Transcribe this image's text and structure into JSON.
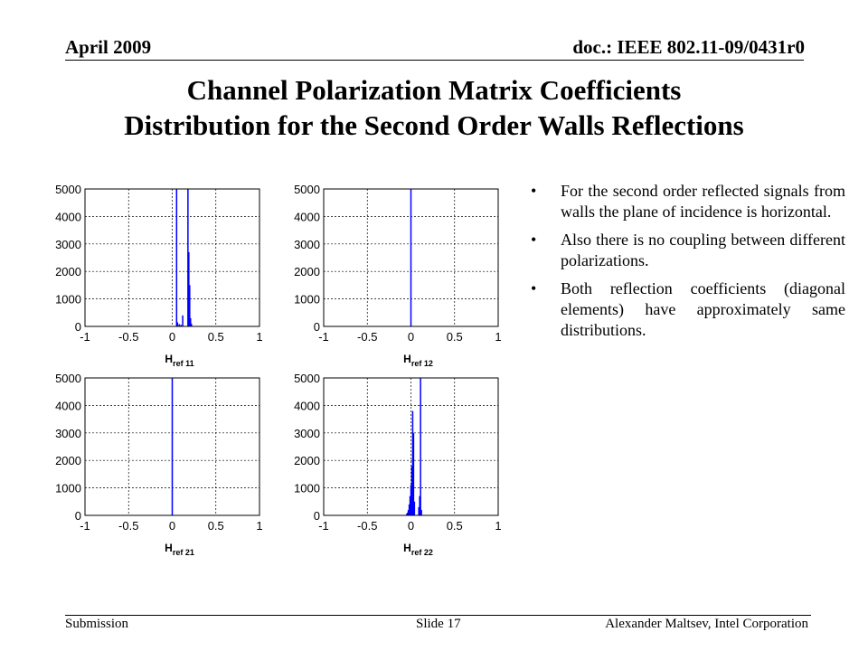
{
  "header": {
    "date": "April 2009",
    "doc": "doc.: IEEE 802.11-09/0431r0"
  },
  "title": {
    "line1": "Channel Polarization  Matrix Coefficients",
    "line2": "Distribution for the Second Order Walls Reflections"
  },
  "bullets": [
    "For the second order reflected signals from walls the plane of incidence is horizontal.",
    "Also there is no coupling between different polarizations.",
    "Both reflection coefficients (diagonal elements) have approximately same distributions."
  ],
  "footer": {
    "left": "Submission",
    "center": "Slide 17",
    "right": "Alexander Maltsev, Intel Corporation"
  },
  "chart_data": [
    {
      "type": "bar",
      "xlabel_main": "H",
      "xlabel_sub": "ref 11",
      "xlim": [
        -1,
        1
      ],
      "ylim": [
        0,
        5000
      ],
      "xticks": [
        "-1",
        "-0.5",
        "0",
        "0.5",
        "1"
      ],
      "yticks": [
        "0",
        "1000",
        "2000",
        "3000",
        "4000",
        "5000"
      ],
      "grid": true,
      "series_color": "#0000ff",
      "x": [
        0.05,
        0.06,
        0.08,
        0.1,
        0.12,
        0.18,
        0.19,
        0.2,
        0.21,
        0.22
      ],
      "values": [
        5000,
        150,
        80,
        60,
        400,
        5000,
        2700,
        1500,
        300,
        100
      ]
    },
    {
      "type": "bar",
      "xlabel_main": "H",
      "xlabel_sub": "ref 12",
      "xlim": [
        -1,
        1
      ],
      "ylim": [
        0,
        5000
      ],
      "xticks": [
        "-1",
        "-0.5",
        "0",
        "0.5",
        "1"
      ],
      "yticks": [
        "0",
        "1000",
        "2000",
        "3000",
        "4000",
        "5000"
      ],
      "grid": true,
      "series_color": "#0000ff",
      "x": [
        0.0
      ],
      "values": [
        5000
      ]
    },
    {
      "type": "bar",
      "xlabel_main": "H",
      "xlabel_sub": "ref 21",
      "xlim": [
        -1,
        1
      ],
      "ylim": [
        0,
        5000
      ],
      "xticks": [
        "-1",
        "-0.5",
        "0",
        "0.5",
        "1"
      ],
      "yticks": [
        "0",
        "1000",
        "2000",
        "3000",
        "4000",
        "5000"
      ],
      "grid": true,
      "series_color": "#0000ff",
      "x": [
        0.0
      ],
      "values": [
        5000
      ]
    },
    {
      "type": "bar",
      "xlabel_main": "H",
      "xlabel_sub": "ref 22",
      "xlim": [
        -1,
        1
      ],
      "ylim": [
        0,
        5000
      ],
      "xticks": [
        "-1",
        "-0.5",
        "0",
        "0.5",
        "1"
      ],
      "yticks": [
        "0",
        "1000",
        "2000",
        "3000",
        "4000",
        "5000"
      ],
      "grid": true,
      "series_color": "#0000ff",
      "x": [
        -0.05,
        -0.04,
        -0.03,
        -0.02,
        -0.01,
        0.0,
        0.01,
        0.02,
        0.03,
        0.04,
        0.09,
        0.1,
        0.11,
        0.12
      ],
      "values": [
        50,
        100,
        200,
        400,
        700,
        1100,
        1800,
        3800,
        3000,
        500,
        300,
        700,
        5000,
        200
      ]
    }
  ]
}
